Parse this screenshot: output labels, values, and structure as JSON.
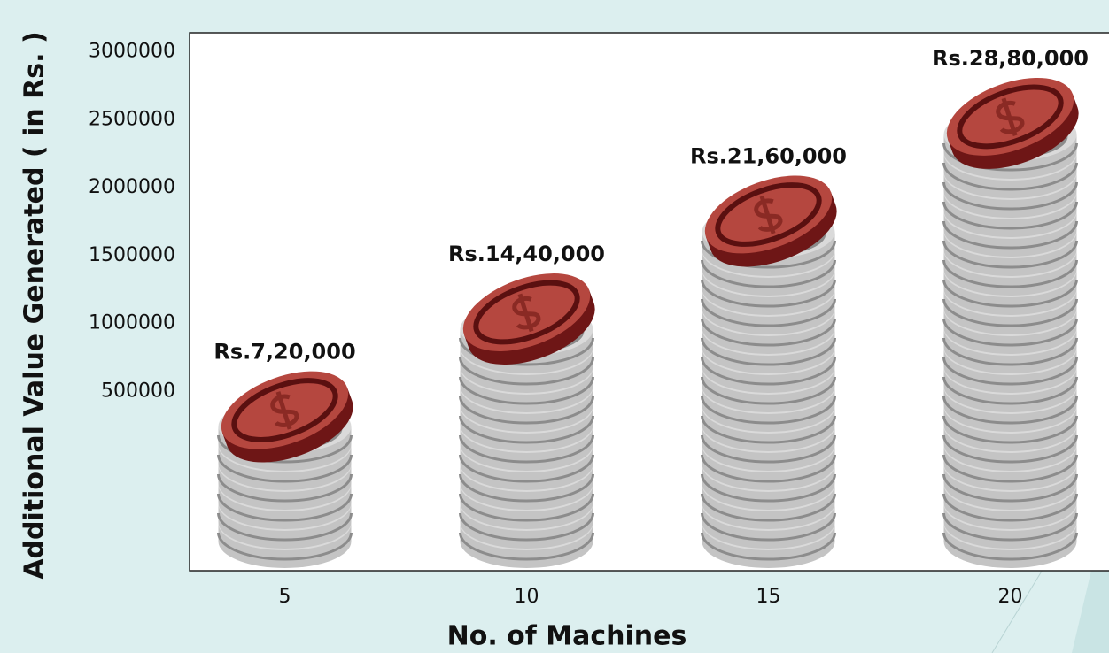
{
  "chart_data": {
    "type": "pictogram-bar",
    "xlabel": "No. of Machines",
    "ylabel": "Additional Value Generated ( in Rs. )",
    "categories": [
      "5",
      "10",
      "15",
      "20"
    ],
    "values": [
      720000,
      1440000,
      2160000,
      2880000
    ],
    "value_labels": [
      "Rs.7,20,000",
      "Rs.14,40,000",
      "Rs.21,60,000",
      "Rs.28,80,000"
    ],
    "ylim": [
      -820000,
      3140000
    ],
    "yticks": [
      500000,
      1000000,
      1500000,
      2000000,
      2500000,
      3000000
    ],
    "color": "#b5473f"
  }
}
